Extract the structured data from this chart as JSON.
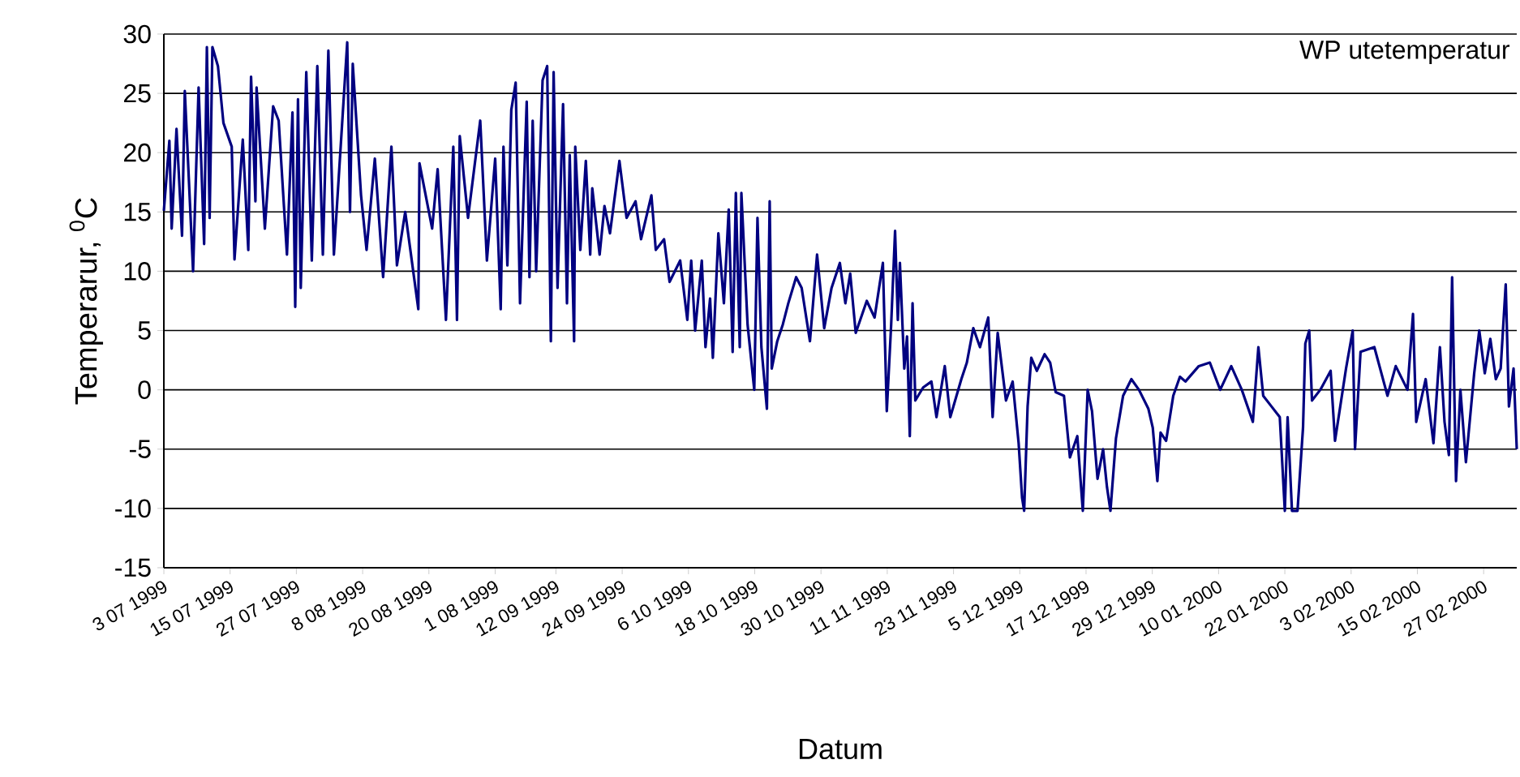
{
  "chart_data": {
    "type": "line",
    "title": "WP utetemperatur",
    "xlabel": "Datum",
    "ylabel": "Temperarur, $^{0}$C",
    "x": [
      "1999-07-03T00:00",
      "1999-07-04T00:00",
      "1999-07-04T10:00",
      "1999-07-05T07:00",
      "1999-07-06T07:00",
      "1999-07-06T19:00",
      "1999-07-08T07:00",
      "1999-07-09T07:00",
      "1999-07-10T07:00",
      "1999-07-10T19:00",
      "1999-07-11T07:00",
      "1999-07-11T19:00",
      "1999-07-12T19:00",
      "1999-07-13T19:00",
      "1999-07-15T07:00",
      "1999-07-15T19:00",
      "1999-07-17T07:00",
      "1999-07-18T07:00",
      "1999-07-18T19:00",
      "1999-07-19T14:00",
      "1999-07-19T19:00",
      "1999-07-21T07:00",
      "1999-07-22T19:00",
      "1999-07-23T19:00",
      "1999-07-25T07:00",
      "1999-07-26T07:00",
      "1999-07-26T19:00",
      "1999-07-27T07:00",
      "1999-07-27T19:00",
      "1999-07-28T19:00",
      "1999-07-29T19:00",
      "1999-07-30T19:00",
      "1999-07-31T19:00",
      "1999-08-01T19:00",
      "1999-08-02T19:00",
      "1999-08-05T05:00",
      "1999-08-05T17:00",
      "1999-08-06T05:00",
      "1999-08-07T17:00",
      "1999-08-08T17:00",
      "1999-08-10T05:00",
      "1999-08-11T17:00",
      "1999-08-13T05:00",
      "1999-08-14T05:00",
      "1999-08-15T17:00",
      "1999-08-18T02:00",
      "1999-08-18T07:00",
      "1999-08-20T14:00",
      "1999-08-21T14:00",
      "1999-08-23T02:00",
      "1999-08-24T10:00",
      "1999-08-25T02:00",
      "1999-08-25T14:00",
      "1999-08-27T02:00",
      "1999-08-29T07:00",
      "1999-08-30T12:00",
      "1999-09-01T00:00",
      "1999-09-02T00:00",
      "1999-09-02T12:00",
      "1999-09-03T05:00",
      "1999-09-03T22:00",
      "1999-09-04T17:00",
      "1999-09-05T12:00",
      "1999-09-06T17:00",
      "1999-09-07T05:00",
      "1999-09-07T19:00",
      "1999-09-08T10:00",
      "1999-09-09T14:00",
      "1999-09-10T10:00",
      "1999-09-11T02:00",
      "1999-09-11T14:00",
      "1999-09-12T07:00",
      "1999-09-13T07:00",
      "1999-09-14T00:00",
      "1999-09-14T12:00",
      "1999-09-15T07:00",
      "1999-09-15T12:00",
      "1999-09-16T10:00",
      "1999-09-17T10:00",
      "1999-09-18T05:00",
      "1999-09-18T14:00",
      "1999-09-19T22:00",
      "1999-09-20T19:00",
      "1999-09-21T19:00",
      "1999-09-23T12:00",
      "1999-09-24T19:00",
      "1999-09-26T10:00",
      "1999-09-27T10:00",
      "1999-09-29T07:00",
      "1999-09-30T02:00",
      "1999-10-01T14:00",
      "1999-10-02T14:00",
      "1999-10-04T12:00",
      "1999-10-05T19:00",
      "1999-10-06T12:00",
      "1999-10-07T05:00",
      "1999-10-08T10:00",
      "1999-10-09T02:00",
      "1999-10-09T22:00",
      "1999-10-10T10:00",
      "1999-10-11T10:00",
      "1999-10-12T10:00",
      "1999-10-13T07:00",
      "1999-10-14T00:00",
      "1999-10-14T14:00",
      "1999-10-15T07:00",
      "1999-10-15T14:00",
      "1999-10-16T17:00",
      "1999-10-17T22:00",
      "1999-10-18T12:00",
      "1999-10-19T05:00",
      "1999-10-20T05:00",
      "1999-10-20T17:00",
      "1999-10-21T02:00",
      "1999-10-22T02:00",
      "1999-10-23T02:00",
      "1999-10-24T02:00",
      "1999-10-25T12:00",
      "1999-10-26T12:00",
      "1999-10-28T00:00",
      "1999-10-29T07:00",
      "1999-10-30T14:00",
      "1999-10-31T22:00",
      "1999-11-02T10:00",
      "1999-11-03T10:00",
      "1999-11-04T07:00",
      "1999-11-05T07:00",
      "1999-11-07T07:00",
      "1999-11-08T17:00",
      "1999-11-10T05:00",
      "1999-11-10T22:00",
      "1999-11-11T17:00",
      "1999-11-12T10:00",
      "1999-11-12T22:00",
      "1999-11-13T07:00",
      "1999-11-14T02:00",
      "1999-11-14T14:00",
      "1999-11-15T02:00",
      "1999-11-15T14:00",
      "1999-11-16T02:00",
      "1999-11-17T12:00",
      "1999-11-19T00:00",
      "1999-11-19T22:00",
      "1999-11-21T10:00",
      "1999-11-22T10:00",
      "1999-11-24T10:00",
      "1999-11-25T10:00",
      "1999-11-26T14:00",
      "1999-11-27T19:00",
      "1999-11-29T07:00",
      "1999-11-30T02:00",
      "1999-12-01T00:00",
      "1999-12-02T12:00",
      "1999-12-03T17:00",
      "1999-12-04T19:00",
      "1999-12-05T10:00",
      "1999-12-05T19:00",
      "1999-12-06T10:00",
      "1999-12-07T02:00",
      "1999-12-08T02:00",
      "1999-12-09T12:00",
      "1999-12-10T12:00",
      "1999-12-11T12:00",
      "1999-12-13T00:00",
      "1999-12-14T02:00",
      "1999-12-15T10:00",
      "1999-12-16T10:00",
      "1999-12-17T07:00",
      "1999-12-18T02:00",
      "1999-12-19T02:00",
      "1999-12-20T02:00",
      "1999-12-20T19:00",
      "1999-12-21T10:00",
      "1999-12-22T10:00",
      "1999-12-23T17:00",
      "1999-12-25T05:00",
      "1999-12-26T14:00",
      "1999-12-28T07:00",
      "1999-12-29T02:00",
      "1999-12-29T22:00",
      "1999-12-30T12:00",
      "1999-12-31T12:00",
      "2000-01-01T19:00",
      "2000-01-03T00:00",
      "2000-01-04T00:00",
      "2000-01-06T10:00",
      "2000-01-08T10:00",
      "2000-01-10T07:00",
      "2000-01-12T07:00",
      "2000-01-14T05:00",
      "2000-01-16T05:00",
      "2000-01-17T05:00",
      "2000-01-18T02:00",
      "2000-01-19T14:00",
      "2000-01-21T02:00",
      "2000-01-22T00:00",
      "2000-01-22T12:00",
      "2000-01-23T07:00",
      "2000-01-24T07:00",
      "2000-01-25T07:00",
      "2000-01-25T17:00",
      "2000-01-26T10:00",
      "2000-01-26T22:00",
      "2000-01-28T10:00",
      "2000-01-30T07:00",
      "2000-01-31T02:00",
      "2000-02-02T02:00",
      "2000-02-03T07:00",
      "2000-02-03T17:00",
      "2000-02-04T17:00",
      "2000-02-07T05:00",
      "2000-02-09T14:00",
      "2000-02-11T02:00",
      "2000-02-13T05:00",
      "2000-02-14T05:00",
      "2000-02-14T19:00",
      "2000-02-16T12:00",
      "2000-02-17T22:00",
      "2000-02-19T02:00",
      "2000-02-19T22:00",
      "2000-02-20T17:00",
      "2000-02-21T07:00",
      "2000-02-22T00:00",
      "2000-02-22T19:00",
      "2000-02-23T19:00",
      "2000-02-25T07:00",
      "2000-02-26T05:00",
      "2000-02-27T05:00",
      "2000-02-28T05:00",
      "2000-02-29T05:00",
      "2000-03-01T02:00",
      "2000-03-02T00:00",
      "2000-03-02T14:00",
      "2000-03-03T10:00",
      "2000-03-04T00:00"
    ],
    "series": [
      {
        "color": "#000080",
        "values": [
          15.1,
          21,
          13.6,
          22,
          13,
          25.2,
          10,
          25.5,
          12.3,
          28.9,
          14.5,
          28.9,
          27.3,
          22.5,
          20.5,
          11,
          21.1,
          11.8,
          26.4,
          15.9,
          25.5,
          13.6,
          23.9,
          22.7,
          11.4,
          23.4,
          7,
          24.5,
          8.6,
          26.8,
          10.9,
          27.3,
          11.4,
          28.6,
          11.4,
          29.3,
          15,
          27.5,
          16.4,
          11.8,
          19.5,
          9.5,
          20.5,
          10.5,
          15,
          6.8,
          19.1,
          13.6,
          18.6,
          5.9,
          20.5,
          5.9,
          21.4,
          14.5,
          22.7,
          10.9,
          19.5,
          6.8,
          20.5,
          10.5,
          23.6,
          25.9,
          7.3,
          24.3,
          9.5,
          22.7,
          10,
          26.1,
          27.3,
          4.1,
          26.8,
          8.6,
          24.1,
          7.3,
          19.8,
          4.1,
          20.5,
          11.8,
          19.3,
          11.4,
          17,
          11.4,
          15.5,
          13.2,
          19.3,
          14.5,
          15.9,
          12.7,
          16.4,
          11.8,
          12.7,
          9.1,
          10.9,
          5.9,
          10.9,
          5,
          10.9,
          3.6,
          7.7,
          2.7,
          13.2,
          7.3,
          15.2,
          3.2,
          16.6,
          3.6,
          16.6,
          5.5,
          0,
          14.5,
          3.6,
          -1.6,
          15.9,
          1.8,
          4.1,
          5.5,
          7.3,
          9.5,
          8.6,
          4.1,
          11.4,
          5.2,
          8.6,
          10.7,
          7.3,
          9.8,
          4.8,
          7.5,
          6.1,
          10.7,
          -1.8,
          5.5,
          13.4,
          5.9,
          10.7,
          1.8,
          4.5,
          -3.9,
          7.3,
          -0.9,
          0.2,
          0.7,
          -2.3,
          2,
          -2.3,
          0.9,
          2.3,
          5.2,
          3.6,
          6.1,
          -2.3,
          4.8,
          -0.9,
          0.7,
          -4.5,
          -9.1,
          -10.2,
          -1.4,
          2.7,
          1.6,
          3,
          2.3,
          -0.2,
          -0.5,
          -5.7,
          -3.9,
          -10.2,
          0,
          -1.8,
          -7.5,
          -5,
          -8.2,
          -10.2,
          -4.1,
          -0.5,
          0.9,
          0,
          -1.6,
          -3.2,
          -7.7,
          -3.6,
          -4.3,
          -0.5,
          1.1,
          0.7,
          2,
          2.3,
          0,
          2,
          0,
          -2.7,
          3.6,
          -0.5,
          -1.4,
          -2.3,
          -10.2,
          -2.3,
          -10.2,
          -10.2,
          -3.2,
          3.9,
          5,
          -0.9,
          0,
          1.6,
          -4.3,
          1.8,
          5,
          -5,
          3.2,
          3.6,
          -0.5,
          2,
          0,
          6.4,
          -2.7,
          0.9,
          -4.5,
          3.6,
          -2.7,
          -5.5,
          9.5,
          -7.7,
          0,
          -6.1,
          1.4,
          5,
          1.4,
          4.3,
          0.9,
          1.8,
          8.9,
          -1.4,
          1.8,
          -5
        ]
      }
    ],
    "xlim": [
      "1999-07-03",
      "2000-03-04"
    ],
    "ylim": [
      -15,
      30
    ],
    "xticks": [
      {
        "value": "1999-07-03",
        "label": "3 07 1999"
      },
      {
        "value": "1999-07-15",
        "label": "15 07 1999"
      },
      {
        "value": "1999-07-27",
        "label": "27 07 1999"
      },
      {
        "value": "1999-08-08",
        "label": "8 08 1999"
      },
      {
        "value": "1999-08-20",
        "label": "20 08 1999"
      },
      {
        "value": "1999-09-01",
        "label": "1 08 1999"
      },
      {
        "value": "1999-09-12",
        "label": "12 09 1999"
      },
      {
        "value": "1999-09-24",
        "label": "24 09 1999"
      },
      {
        "value": "1999-10-06",
        "label": "6 10 1999"
      },
      {
        "value": "1999-10-18",
        "label": "18 10 1999"
      },
      {
        "value": "1999-10-30",
        "label": "30 10 1999"
      },
      {
        "value": "1999-11-11",
        "label": "11 11 1999"
      },
      {
        "value": "1999-11-23",
        "label": "23 11 1999"
      },
      {
        "value": "1999-12-05",
        "label": "5 12 1999"
      },
      {
        "value": "1999-12-17",
        "label": "17 12 1999"
      },
      {
        "value": "1999-12-29",
        "label": "29 12 1999"
      },
      {
        "value": "2000-01-10",
        "label": "10 01 2000"
      },
      {
        "value": "2000-01-22",
        "label": "22 01 2000"
      },
      {
        "value": "2000-02-03",
        "label": "3 02 2000"
      },
      {
        "value": "2000-02-15",
        "label": "15 02 2000"
      },
      {
        "value": "2000-02-27",
        "label": "27 02 2000"
      }
    ],
    "yticks": [
      -15,
      -10,
      -5,
      0,
      5,
      10,
      15,
      20,
      25,
      30
    ],
    "grid": "y",
    "marker": "none",
    "line_style": "solid"
  }
}
